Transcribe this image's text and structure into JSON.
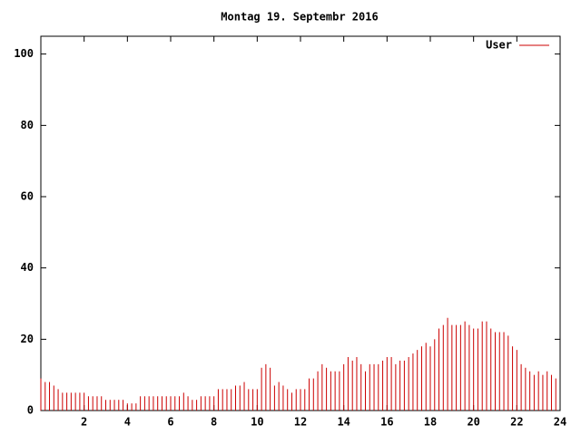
{
  "chart_data": {
    "type": "impulse",
    "title": "Montag 19. Septembr 2016",
    "series": [
      {
        "name": "User",
        "color": "#cc0000",
        "x": [
          0,
          0.2,
          0.4,
          0.6,
          0.8,
          1,
          1.2,
          1.4,
          1.6,
          1.8,
          2,
          2.2,
          2.4,
          2.6,
          2.8,
          3,
          3.2,
          3.4,
          3.6,
          3.8,
          4,
          4.2,
          4.4,
          4.6,
          4.8,
          5,
          5.2,
          5.4,
          5.6,
          5.8,
          6,
          6.2,
          6.4,
          6.6,
          6.8,
          7,
          7.2,
          7.4,
          7.6,
          7.8,
          8,
          8.2,
          8.4,
          8.6,
          8.8,
          9,
          9.2,
          9.4,
          9.6,
          9.8,
          10,
          10.2,
          10.4,
          10.6,
          10.8,
          11,
          11.2,
          11.4,
          11.6,
          11.8,
          12,
          12.2,
          12.4,
          12.6,
          12.8,
          13,
          13.2,
          13.4,
          13.6,
          13.8,
          14,
          14.2,
          14.4,
          14.6,
          14.8,
          15,
          15.2,
          15.4,
          15.6,
          15.8,
          16,
          16.2,
          16.4,
          16.6,
          16.8,
          17,
          17.2,
          17.4,
          17.6,
          17.8,
          18,
          18.2,
          18.4,
          18.6,
          18.8,
          19,
          19.2,
          19.4,
          19.6,
          19.8,
          20,
          20.2,
          20.4,
          20.6,
          20.8,
          21,
          21.2,
          21.4,
          21.6,
          21.8,
          22,
          22.2,
          22.4,
          22.6,
          22.8,
          23,
          23.2,
          23.4,
          23.6,
          23.8
        ],
        "values": [
          9,
          8,
          8,
          7,
          6,
          5,
          5,
          5,
          5,
          5,
          5,
          4,
          4,
          4,
          4,
          3,
          3,
          3,
          3,
          3,
          2,
          2,
          2,
          4,
          4,
          4,
          4,
          4,
          4,
          4,
          4,
          4,
          4,
          5,
          4,
          3,
          3,
          4,
          4,
          4,
          4,
          6,
          6,
          6,
          6,
          7,
          7,
          8,
          6,
          6,
          6,
          12,
          13,
          12,
          7,
          8,
          7,
          6,
          5,
          6,
          6,
          6,
          9,
          9,
          11,
          13,
          12,
          11,
          11,
          11,
          13,
          15,
          14,
          15,
          13,
          11,
          13,
          13,
          13,
          14,
          15,
          15,
          13,
          14,
          14,
          15,
          16,
          17,
          18,
          19,
          18,
          20,
          23,
          24,
          26,
          24,
          24,
          24,
          25,
          24,
          23,
          23,
          25,
          25,
          23,
          22,
          22,
          22,
          21,
          18,
          17,
          13,
          12,
          11,
          10,
          11,
          10,
          11,
          10,
          9
        ]
      }
    ],
    "xlim": [
      0,
      24
    ],
    "xticks": [
      2,
      4,
      6,
      8,
      10,
      12,
      14,
      16,
      18,
      20,
      22,
      24
    ],
    "ylim": [
      0,
      105
    ],
    "yticks": [
      0,
      20,
      40,
      60,
      80,
      100
    ],
    "legend": "upper right"
  }
}
